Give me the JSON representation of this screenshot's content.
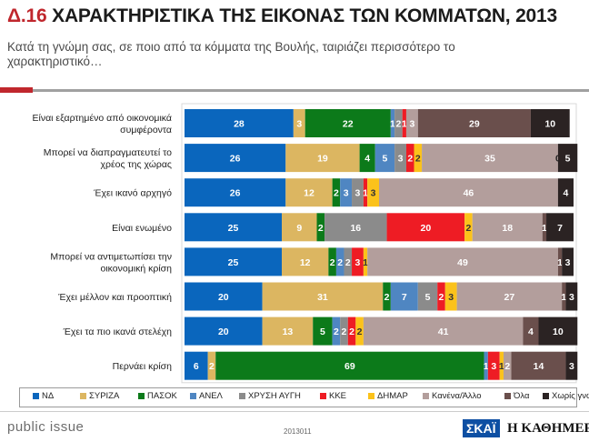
{
  "header": {
    "number": "Δ.16",
    "title": "ΧΑΡΑΚΤΗΡΙΣΤΙΚΑ ΤΗΣ ΕΙΚΟΝΑΣ ΤΩΝ ΚΟΜΜΑΤΩΝ, 2013",
    "subtitle": "Κατά τη γνώμη σας, σε ποιο από τα κόμματα της Βουλής, ταιριάζει περισσότερο το χαρακτηριστικό…"
  },
  "chart_data": {
    "type": "bar",
    "orientation": "horizontal",
    "stacked": true,
    "categories": [
      [
        "Είναι εξαρτημένο από οικονομικά",
        "συμφέροντα"
      ],
      [
        "Μπορεί να διαπραγματευτεί το",
        "χρέος της χώρας"
      ],
      [
        "Έχει ικανό αρχηγό"
      ],
      [
        "Είναι ενωμένο"
      ],
      [
        "Μπορεί να αντιμετωπίσει την",
        "οικονομική κρίση"
      ],
      [
        "Έχει μέλλον και προοπτική"
      ],
      [
        "Έχει τα πιο ικανά στελέχη"
      ],
      [
        "Περνάει κρίση"
      ]
    ],
    "series": [
      {
        "name": "ΝΔ",
        "color": "#0a66bd",
        "label_color": "#ffffff",
        "values": [
          28,
          26,
          26,
          25,
          25,
          20,
          20,
          6
        ]
      },
      {
        "name": "ΣΥΡΙΖΑ",
        "color": "#dcb661",
        "label_color": "#ffffff",
        "values": [
          3,
          19,
          12,
          9,
          12,
          31,
          13,
          2
        ]
      },
      {
        "name": "ΠΑΣΟΚ",
        "color": "#0c7a1a",
        "label_color": "#ffffff",
        "values": [
          22,
          4,
          2,
          2,
          2,
          2,
          5,
          69
        ]
      },
      {
        "name": "ΑΝΕΛ",
        "color": "#4f86c2",
        "label_color": "#ffffff",
        "values": [
          1,
          5,
          3,
          0,
          2,
          7,
          2,
          1
        ]
      },
      {
        "name": "ΧΡΥΣΗ ΑΥΓΗ",
        "color": "#8b8b8b",
        "label_color": "#ffffff",
        "values": [
          2,
          3,
          3,
          16,
          2,
          5,
          2,
          0
        ]
      },
      {
        "name": "ΚΚΕ",
        "color": "#ee1c24",
        "label_color": "#ffffff",
        "values": [
          1,
          2,
          1,
          20,
          3,
          2,
          2,
          3
        ]
      },
      {
        "name": "ΔΗΜΑΡ",
        "color": "#fbc21b",
        "label_color": "#333333",
        "values": [
          0,
          2,
          3,
          2,
          1,
          3,
          2,
          1
        ]
      },
      {
        "name": "Κανένα/Άλλο",
        "color": "#b39e9c",
        "label_color": "#ffffff",
        "values": [
          3,
          35,
          46,
          18,
          49,
          27,
          41,
          2
        ]
      },
      {
        "name": "Όλα",
        "color": "#6a4f4c",
        "label_color": "#ffffff",
        "values": [
          29,
          0,
          0,
          1,
          1,
          1,
          4,
          14
        ]
      },
      {
        "name": "Χωρίς γνώμη",
        "color": "#2b2323",
        "label_color": "#ffffff",
        "values": [
          10,
          5,
          4,
          7,
          3,
          3,
          10,
          3
        ]
      }
    ],
    "xlim": [
      0,
      100
    ],
    "grid": false,
    "legend": "bottom"
  },
  "footer": {
    "brand_left": "public issue",
    "code": "2013011",
    "brand_skai": "ΣΚΑΪ",
    "brand_kathimerini": "Η ΚΑΘΗΜΕΡΙΝΗ"
  }
}
